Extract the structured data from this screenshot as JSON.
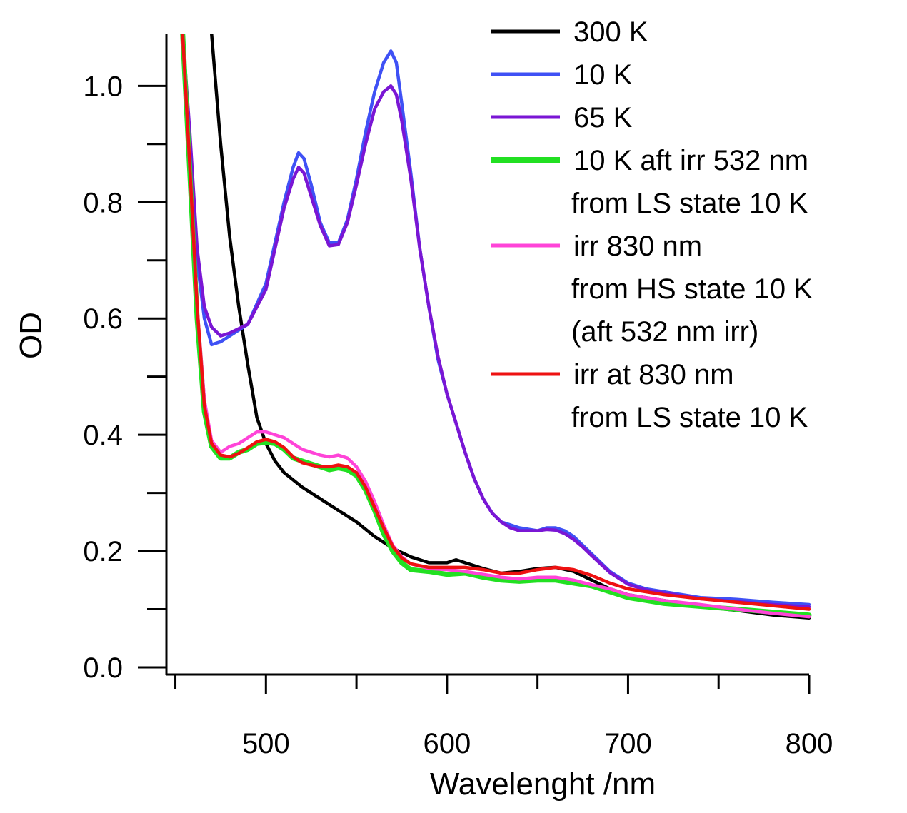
{
  "chart_data": {
    "type": "line",
    "title": "",
    "xlabel": "Wavelenght /nm",
    "ylabel": "OD",
    "xlim": [
      449,
      800
    ],
    "ylim": [
      0,
      1.09
    ],
    "x_ticks": [
      500,
      600,
      700,
      800
    ],
    "x_tick_labels": [
      "500",
      "600",
      "700",
      "800"
    ],
    "y_ticks": [
      0.0,
      0.2,
      0.4,
      0.6,
      0.8,
      1.0
    ],
    "y_tick_labels": [
      "0.0",
      "0.2",
      "0.4",
      "0.6",
      "0.8",
      "1.0"
    ],
    "grid": false,
    "legend_position": "top-right",
    "series": [
      {
        "name": "300 K",
        "legend": [
          "300 K"
        ],
        "color": "#000000",
        "points": [
          [
            470,
            1.09
          ],
          [
            475,
            0.9
          ],
          [
            480,
            0.74
          ],
          [
            485,
            0.62
          ],
          [
            490,
            0.52
          ],
          [
            495,
            0.43
          ],
          [
            500,
            0.385
          ],
          [
            505,
            0.355
          ],
          [
            510,
            0.335
          ],
          [
            520,
            0.31
          ],
          [
            530,
            0.29
          ],
          [
            540,
            0.27
          ],
          [
            550,
            0.25
          ],
          [
            560,
            0.225
          ],
          [
            570,
            0.205
          ],
          [
            580,
            0.19
          ],
          [
            590,
            0.18
          ],
          [
            600,
            0.18
          ],
          [
            605,
            0.185
          ],
          [
            610,
            0.18
          ],
          [
            620,
            0.17
          ],
          [
            630,
            0.162
          ],
          [
            640,
            0.165
          ],
          [
            650,
            0.17
          ],
          [
            660,
            0.172
          ],
          [
            670,
            0.165
          ],
          [
            680,
            0.15
          ],
          [
            690,
            0.135
          ],
          [
            700,
            0.125
          ],
          [
            720,
            0.115
          ],
          [
            740,
            0.105
          ],
          [
            760,
            0.098
          ],
          [
            780,
            0.09
          ],
          [
            800,
            0.085
          ]
        ]
      },
      {
        "name": "10 K",
        "legend": [
          "10 K"
        ],
        "color": "#3f51f5",
        "points": [
          [
            454,
            1.09
          ],
          [
            458,
            0.9
          ],
          [
            462,
            0.7
          ],
          [
            466,
            0.6
          ],
          [
            470,
            0.555
          ],
          [
            475,
            0.56
          ],
          [
            480,
            0.57
          ],
          [
            490,
            0.59
          ],
          [
            500,
            0.66
          ],
          [
            505,
            0.73
          ],
          [
            510,
            0.8
          ],
          [
            515,
            0.86
          ],
          [
            518,
            0.885
          ],
          [
            521,
            0.875
          ],
          [
            525,
            0.83
          ],
          [
            530,
            0.765
          ],
          [
            535,
            0.73
          ],
          [
            540,
            0.73
          ],
          [
            545,
            0.77
          ],
          [
            550,
            0.84
          ],
          [
            555,
            0.92
          ],
          [
            560,
            0.99
          ],
          [
            565,
            1.04
          ],
          [
            569,
            1.06
          ],
          [
            572,
            1.04
          ],
          [
            575,
            0.97
          ],
          [
            580,
            0.85
          ],
          [
            585,
            0.72
          ],
          [
            590,
            0.62
          ],
          [
            595,
            0.53
          ],
          [
            600,
            0.47
          ],
          [
            605,
            0.42
          ],
          [
            610,
            0.37
          ],
          [
            615,
            0.325
          ],
          [
            620,
            0.29
          ],
          [
            625,
            0.265
          ],
          [
            630,
            0.25
          ],
          [
            635,
            0.245
          ],
          [
            640,
            0.24
          ],
          [
            650,
            0.235
          ],
          [
            655,
            0.24
          ],
          [
            660,
            0.24
          ],
          [
            665,
            0.235
          ],
          [
            670,
            0.225
          ],
          [
            675,
            0.21
          ],
          [
            680,
            0.195
          ],
          [
            690,
            0.165
          ],
          [
            700,
            0.145
          ],
          [
            710,
            0.135
          ],
          [
            720,
            0.13
          ],
          [
            740,
            0.12
          ],
          [
            760,
            0.117
          ],
          [
            780,
            0.112
          ],
          [
            800,
            0.108
          ]
        ]
      },
      {
        "name": "65 K",
        "legend": [
          "65 K"
        ],
        "color": "#7a16d4",
        "points": [
          [
            454,
            1.09
          ],
          [
            458,
            0.92
          ],
          [
            462,
            0.72
          ],
          [
            466,
            0.62
          ],
          [
            470,
            0.585
          ],
          [
            475,
            0.57
          ],
          [
            480,
            0.575
          ],
          [
            490,
            0.59
          ],
          [
            500,
            0.65
          ],
          [
            505,
            0.72
          ],
          [
            510,
            0.79
          ],
          [
            515,
            0.84
          ],
          [
            518,
            0.86
          ],
          [
            521,
            0.85
          ],
          [
            525,
            0.81
          ],
          [
            530,
            0.76
          ],
          [
            535,
            0.725
          ],
          [
            540,
            0.727
          ],
          [
            545,
            0.765
          ],
          [
            550,
            0.83
          ],
          [
            555,
            0.9
          ],
          [
            560,
            0.96
          ],
          [
            565,
            0.99
          ],
          [
            569,
            1.0
          ],
          [
            572,
            0.985
          ],
          [
            575,
            0.94
          ],
          [
            580,
            0.84
          ],
          [
            585,
            0.72
          ],
          [
            590,
            0.62
          ],
          [
            595,
            0.535
          ],
          [
            600,
            0.47
          ],
          [
            605,
            0.42
          ],
          [
            610,
            0.37
          ],
          [
            615,
            0.325
          ],
          [
            620,
            0.29
          ],
          [
            625,
            0.265
          ],
          [
            630,
            0.25
          ],
          [
            635,
            0.24
          ],
          [
            640,
            0.235
          ],
          [
            650,
            0.235
          ],
          [
            655,
            0.237
          ],
          [
            660,
            0.236
          ],
          [
            665,
            0.23
          ],
          [
            670,
            0.22
          ],
          [
            675,
            0.207
          ],
          [
            680,
            0.192
          ],
          [
            690,
            0.163
          ],
          [
            700,
            0.143
          ],
          [
            710,
            0.133
          ],
          [
            720,
            0.128
          ],
          [
            740,
            0.118
          ],
          [
            760,
            0.113
          ],
          [
            780,
            0.108
          ],
          [
            800,
            0.104
          ]
        ]
      },
      {
        "name": "10 K aft irr 532 nm from LS state 10 K",
        "legend": [
          "10 K aft irr 532 nm",
          "from LS state 10 K"
        ],
        "color": "#22e022",
        "points": [
          [
            454,
            1.09
          ],
          [
            458,
            0.85
          ],
          [
            462,
            0.6
          ],
          [
            466,
            0.44
          ],
          [
            470,
            0.38
          ],
          [
            475,
            0.36
          ],
          [
            480,
            0.36
          ],
          [
            485,
            0.37
          ],
          [
            490,
            0.375
          ],
          [
            495,
            0.385
          ],
          [
            500,
            0.387
          ],
          [
            505,
            0.385
          ],
          [
            510,
            0.375
          ],
          [
            515,
            0.36
          ],
          [
            520,
            0.355
          ],
          [
            525,
            0.35
          ],
          [
            530,
            0.345
          ],
          [
            535,
            0.34
          ],
          [
            540,
            0.343
          ],
          [
            545,
            0.34
          ],
          [
            550,
            0.33
          ],
          [
            555,
            0.305
          ],
          [
            560,
            0.27
          ],
          [
            565,
            0.23
          ],
          [
            570,
            0.2
          ],
          [
            575,
            0.18
          ],
          [
            580,
            0.168
          ],
          [
            590,
            0.165
          ],
          [
            600,
            0.16
          ],
          [
            610,
            0.162
          ],
          [
            620,
            0.155
          ],
          [
            630,
            0.15
          ],
          [
            640,
            0.148
          ],
          [
            650,
            0.15
          ],
          [
            660,
            0.15
          ],
          [
            670,
            0.145
          ],
          [
            680,
            0.14
          ],
          [
            690,
            0.13
          ],
          [
            700,
            0.12
          ],
          [
            720,
            0.11
          ],
          [
            740,
            0.105
          ],
          [
            760,
            0.1
          ],
          [
            780,
            0.095
          ],
          [
            800,
            0.09
          ]
        ]
      },
      {
        "name": "irr 830 nm from HS state 10 K (aft 532 nm irr)",
        "legend": [
          "irr 830 nm",
          "from HS state 10 K",
          "(aft 532 nm irr)"
        ],
        "color": "#ff44d8",
        "points": [
          [
            454,
            1.09
          ],
          [
            458,
            0.86
          ],
          [
            462,
            0.62
          ],
          [
            466,
            0.46
          ],
          [
            470,
            0.39
          ],
          [
            475,
            0.37
          ],
          [
            480,
            0.38
          ],
          [
            485,
            0.385
          ],
          [
            490,
            0.395
          ],
          [
            495,
            0.405
          ],
          [
            500,
            0.405
          ],
          [
            505,
            0.4
          ],
          [
            510,
            0.395
          ],
          [
            515,
            0.385
          ],
          [
            520,
            0.375
          ],
          [
            525,
            0.37
          ],
          [
            530,
            0.365
          ],
          [
            535,
            0.362
          ],
          [
            540,
            0.365
          ],
          [
            545,
            0.36
          ],
          [
            550,
            0.345
          ],
          [
            555,
            0.32
          ],
          [
            560,
            0.285
          ],
          [
            565,
            0.245
          ],
          [
            570,
            0.21
          ],
          [
            575,
            0.19
          ],
          [
            580,
            0.178
          ],
          [
            590,
            0.17
          ],
          [
            600,
            0.168
          ],
          [
            610,
            0.165
          ],
          [
            620,
            0.16
          ],
          [
            630,
            0.155
          ],
          [
            640,
            0.152
          ],
          [
            650,
            0.155
          ],
          [
            660,
            0.155
          ],
          [
            670,
            0.15
          ],
          [
            680,
            0.142
          ],
          [
            690,
            0.135
          ],
          [
            700,
            0.125
          ],
          [
            720,
            0.115
          ],
          [
            740,
            0.108
          ],
          [
            760,
            0.1
          ],
          [
            780,
            0.093
          ],
          [
            800,
            0.087
          ]
        ]
      },
      {
        "name": "irr at 830 nm from LS state 10 K",
        "legend": [
          "irr at 830 nm",
          "from LS state 10 K"
        ],
        "color": "#ee1111",
        "points": [
          [
            454,
            1.09
          ],
          [
            458,
            0.86
          ],
          [
            462,
            0.62
          ],
          [
            466,
            0.45
          ],
          [
            470,
            0.385
          ],
          [
            475,
            0.365
          ],
          [
            480,
            0.362
          ],
          [
            485,
            0.368
          ],
          [
            490,
            0.378
          ],
          [
            495,
            0.388
          ],
          [
            500,
            0.392
          ],
          [
            505,
            0.388
          ],
          [
            510,
            0.378
          ],
          [
            515,
            0.362
          ],
          [
            520,
            0.352
          ],
          [
            525,
            0.348
          ],
          [
            530,
            0.345
          ],
          [
            535,
            0.345
          ],
          [
            540,
            0.348
          ],
          [
            545,
            0.345
          ],
          [
            550,
            0.335
          ],
          [
            555,
            0.31
          ],
          [
            560,
            0.275
          ],
          [
            565,
            0.24
          ],
          [
            570,
            0.208
          ],
          [
            575,
            0.188
          ],
          [
            580,
            0.178
          ],
          [
            590,
            0.172
          ],
          [
            600,
            0.172
          ],
          [
            610,
            0.172
          ],
          [
            620,
            0.168
          ],
          [
            630,
            0.162
          ],
          [
            640,
            0.162
          ],
          [
            650,
            0.168
          ],
          [
            660,
            0.172
          ],
          [
            670,
            0.168
          ],
          [
            680,
            0.158
          ],
          [
            690,
            0.145
          ],
          [
            700,
            0.135
          ],
          [
            720,
            0.125
          ],
          [
            740,
            0.118
          ],
          [
            760,
            0.112
          ],
          [
            780,
            0.106
          ],
          [
            800,
            0.1
          ]
        ]
      }
    ]
  }
}
